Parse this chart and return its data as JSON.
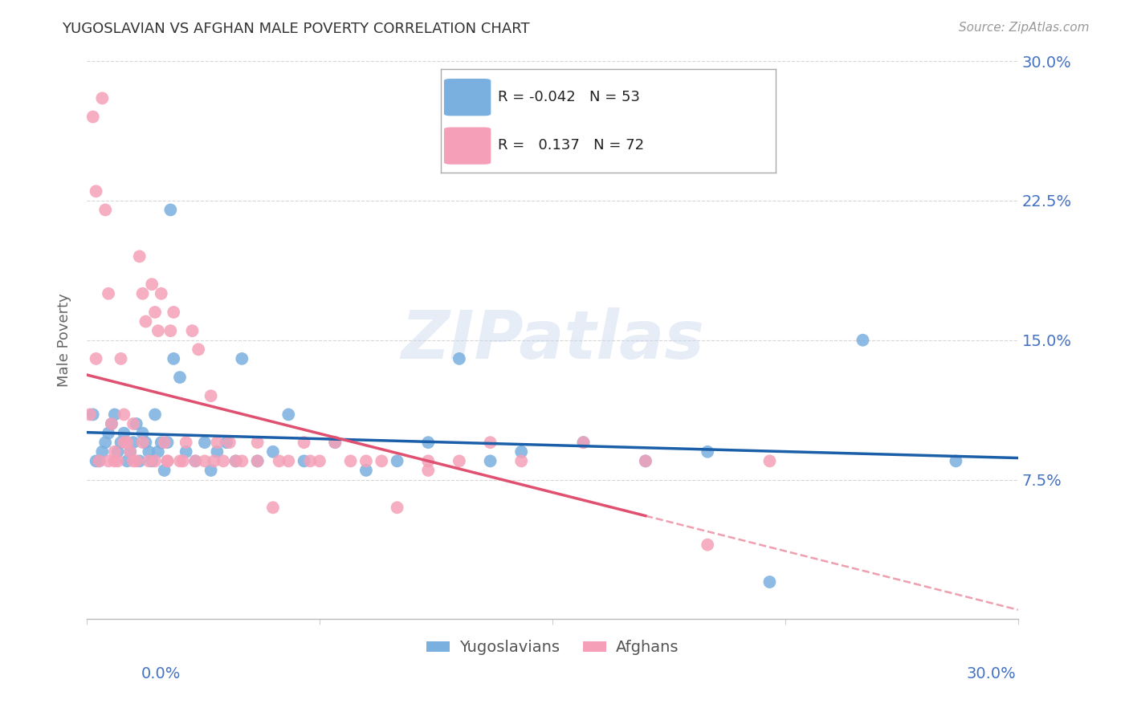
{
  "title": "YUGOSLAVIAN VS AFGHAN MALE POVERTY CORRELATION CHART",
  "source": "Source: ZipAtlas.com",
  "ylabel": "Male Poverty",
  "ytick_labels": [
    "7.5%",
    "15.0%",
    "22.5%",
    "30.0%"
  ],
  "ytick_values": [
    0.075,
    0.15,
    0.225,
    0.3
  ],
  "xlim": [
    0.0,
    0.3
  ],
  "ylim": [
    0.0,
    0.3
  ],
  "watermark": "ZIPatlas",
  "yugoslav_color": "#7ab0e0",
  "afghan_color": "#f5a0b8",
  "yugoslav_line_color": "#1a5fa8",
  "afghan_line_color": "#e05070",
  "yugoslav_R": -0.042,
  "afghan_R": 0.137,
  "yugoslav_N": 53,
  "afghan_N": 72,
  "grid_color": "#cccccc",
  "axis_label_color": "#4472c4",
  "title_color": "#333333",
  "background_color": "#ffffff",
  "yugoslav_x": [
    0.002,
    0.004,
    0.005,
    0.006,
    0.007,
    0.008,
    0.009,
    0.01,
    0.011,
    0.012,
    0.013,
    0.014,
    0.015,
    0.016,
    0.017,
    0.018,
    0.019,
    0.02,
    0.021,
    0.022,
    0.023,
    0.025,
    0.026,
    0.027,
    0.028,
    0.03,
    0.032,
    0.035,
    0.038,
    0.04,
    0.042,
    0.045,
    0.048,
    0.05,
    0.055,
    0.06,
    0.065,
    0.07,
    0.08,
    0.09,
    0.1,
    0.11,
    0.12,
    0.13,
    0.14,
    0.16,
    0.18,
    0.2,
    0.22,
    0.25,
    0.28,
    0.003,
    0.024
  ],
  "yugoslav_y": [
    0.11,
    0.085,
    0.09,
    0.095,
    0.1,
    0.105,
    0.11,
    0.09,
    0.095,
    0.1,
    0.085,
    0.09,
    0.095,
    0.105,
    0.085,
    0.1,
    0.095,
    0.09,
    0.085,
    0.11,
    0.09,
    0.08,
    0.095,
    0.22,
    0.14,
    0.13,
    0.09,
    0.085,
    0.095,
    0.08,
    0.09,
    0.095,
    0.085,
    0.14,
    0.085,
    0.09,
    0.11,
    0.085,
    0.095,
    0.08,
    0.085,
    0.095,
    0.14,
    0.085,
    0.09,
    0.095,
    0.085,
    0.09,
    0.02,
    0.15,
    0.085,
    0.085,
    0.095
  ],
  "afghan_x": [
    0.001,
    0.002,
    0.003,
    0.004,
    0.005,
    0.006,
    0.007,
    0.008,
    0.009,
    0.01,
    0.011,
    0.012,
    0.013,
    0.014,
    0.015,
    0.016,
    0.017,
    0.018,
    0.019,
    0.02,
    0.021,
    0.022,
    0.023,
    0.024,
    0.025,
    0.026,
    0.027,
    0.028,
    0.03,
    0.032,
    0.034,
    0.036,
    0.038,
    0.04,
    0.042,
    0.044,
    0.046,
    0.05,
    0.055,
    0.06,
    0.065,
    0.07,
    0.075,
    0.08,
    0.09,
    0.1,
    0.11,
    0.12,
    0.13,
    0.14,
    0.16,
    0.18,
    0.2,
    0.22,
    0.003,
    0.007,
    0.009,
    0.012,
    0.015,
    0.018,
    0.022,
    0.026,
    0.031,
    0.035,
    0.041,
    0.048,
    0.055,
    0.062,
    0.072,
    0.085,
    0.095,
    0.11
  ],
  "afghan_y": [
    0.11,
    0.27,
    0.23,
    0.085,
    0.28,
    0.22,
    0.175,
    0.105,
    0.09,
    0.085,
    0.14,
    0.11,
    0.095,
    0.09,
    0.105,
    0.085,
    0.195,
    0.175,
    0.16,
    0.085,
    0.18,
    0.165,
    0.155,
    0.175,
    0.095,
    0.085,
    0.155,
    0.165,
    0.085,
    0.095,
    0.155,
    0.145,
    0.085,
    0.12,
    0.095,
    0.085,
    0.095,
    0.085,
    0.095,
    0.06,
    0.085,
    0.095,
    0.085,
    0.095,
    0.085,
    0.06,
    0.08,
    0.085,
    0.095,
    0.085,
    0.095,
    0.085,
    0.04,
    0.085,
    0.14,
    0.085,
    0.085,
    0.095,
    0.085,
    0.095,
    0.085,
    0.085,
    0.085,
    0.085,
    0.085,
    0.085,
    0.085,
    0.085,
    0.085,
    0.085,
    0.085,
    0.085
  ]
}
